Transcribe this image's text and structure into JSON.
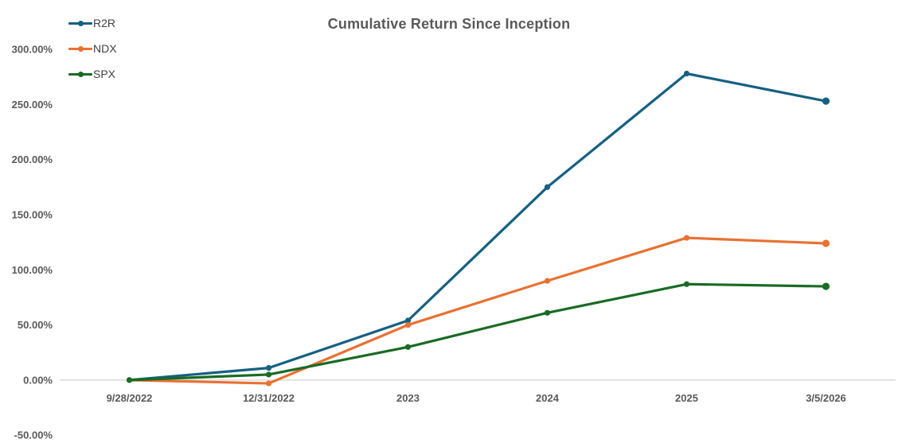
{
  "chart_data": {
    "type": "line",
    "title": "Cumulative Return Since Inception",
    "categories": [
      "9/28/2022",
      "12/31/2022",
      "2023",
      "2024",
      "2025",
      "3/5/2026"
    ],
    "series": [
      {
        "name": "R2R",
        "color": "#156082",
        "values": [
          0,
          11,
          54,
          175,
          278,
          253
        ]
      },
      {
        "name": "NDX",
        "color": "#E97132",
        "values": [
          0,
          -3,
          50,
          90,
          129,
          124
        ]
      },
      {
        "name": "SPX",
        "color": "#196B24",
        "values": [
          0,
          5,
          30,
          61,
          87,
          85
        ]
      }
    ],
    "ylabel": "",
    "xlabel": "",
    "ylim": [
      -50,
      300
    ],
    "y_tick_values": [
      300,
      250,
      200,
      150,
      100,
      50,
      0,
      -50
    ],
    "y_tick_labels": [
      "300.00%",
      "250.00%",
      "200.00%",
      "150.00%",
      "100.00%",
      "50.00%",
      "0.00%",
      "-50.00%"
    ],
    "grid": false,
    "legend_position": "top-left",
    "axis_line_color": "#D9D9D9",
    "text_color": "#595959"
  }
}
